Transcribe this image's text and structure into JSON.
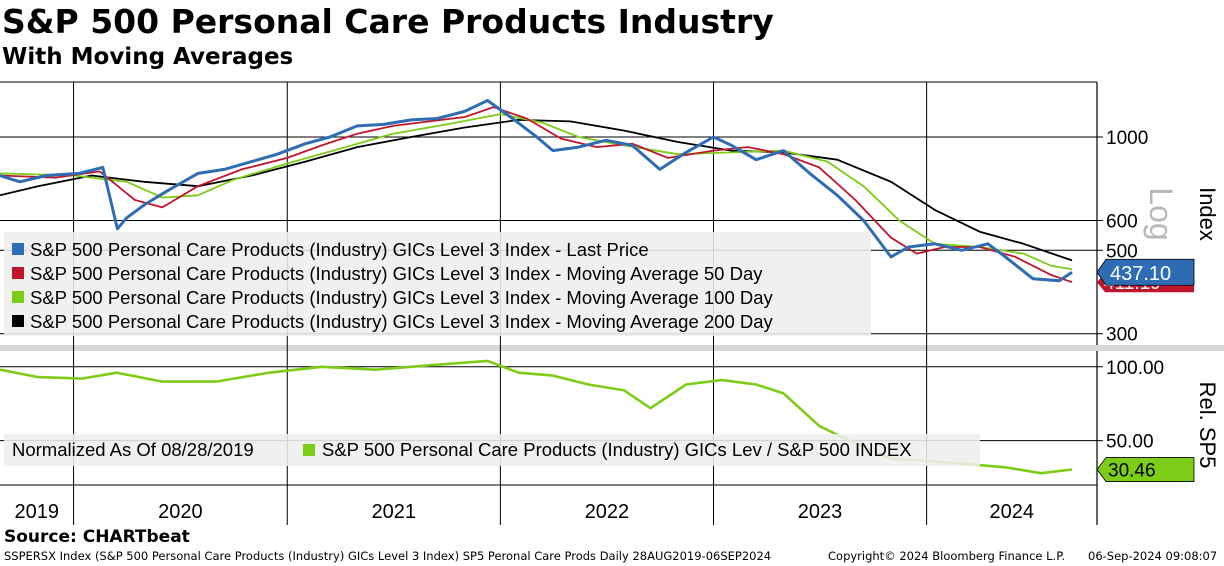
{
  "title": "S&P 500 Personal Care Products Industry",
  "subtitle": "With Moving Averages",
  "source": "Source: CHARTbeat",
  "footer": {
    "left": "SSPERSX Index (S&P 500 Personal Care Products (Industry) GICs Level 3 Index) SP5 Peronal Care Prods  Daily 28AUG2019-06SEP2024",
    "middle": "Copyright© 2024 Bloomberg Finance L.P.",
    "right": "06-Sep-2024 09:08:07"
  },
  "colors": {
    "price": "#2e6db4",
    "ma50": "#c0162c",
    "ma100": "#7ccd16",
    "ma200": "#000000",
    "rel": "#7ccd16"
  },
  "chart_data": [
    {
      "type": "line",
      "yscale": "log",
      "ylabel": "Index",
      "ylabel_secondary": "Log",
      "yticks": [
        300,
        500,
        600,
        1000
      ],
      "ylim": [
        280,
        1400
      ],
      "xlim": [
        "2019-08-28",
        "2024-09-06"
      ],
      "xticks": [
        "2019",
        "2020",
        "2021",
        "2022",
        "2023",
        "2024"
      ],
      "legend_position": "lower-left",
      "last_values": {
        "price": "437.10",
        "ma50": "411.19"
      },
      "series": [
        {
          "name": "S&P 500 Personal Care Products (Industry) GICs Level 3 Index - Last Price",
          "key": "price",
          "points": [
            [
              "2019-08-28",
              790
            ],
            [
              "2019-10-01",
              760
            ],
            [
              "2019-11-15",
              790
            ],
            [
              "2020-01-10",
              800
            ],
            [
              "2020-02-20",
              830
            ],
            [
              "2020-03-16",
              570
            ],
            [
              "2020-04-01",
              610
            ],
            [
              "2020-05-01",
              660
            ],
            [
              "2020-06-10",
              720
            ],
            [
              "2020-08-01",
              800
            ],
            [
              "2020-09-15",
              820
            ],
            [
              "2020-11-01",
              860
            ],
            [
              "2020-12-15",
              900
            ],
            [
              "2021-02-01",
              960
            ],
            [
              "2021-03-15",
              1000
            ],
            [
              "2021-05-01",
              1070
            ],
            [
              "2021-06-15",
              1080
            ],
            [
              "2021-08-01",
              1110
            ],
            [
              "2021-09-15",
              1120
            ],
            [
              "2021-11-01",
              1170
            ],
            [
              "2021-12-10",
              1250
            ],
            [
              "2022-01-15",
              1140
            ],
            [
              "2022-03-01",
              1010
            ],
            [
              "2022-04-01",
              920
            ],
            [
              "2022-05-15",
              940
            ],
            [
              "2022-07-01",
              980
            ],
            [
              "2022-08-15",
              950
            ],
            [
              "2022-10-01",
              820
            ],
            [
              "2022-11-15",
              910
            ],
            [
              "2023-01-01",
              1000
            ],
            [
              "2023-02-01",
              950
            ],
            [
              "2023-03-15",
              870
            ],
            [
              "2023-05-01",
              920
            ],
            [
              "2023-06-15",
              800
            ],
            [
              "2023-08-01",
              700
            ],
            [
              "2023-09-15",
              600
            ],
            [
              "2023-11-01",
              480
            ],
            [
              "2023-12-01",
              510
            ],
            [
              "2024-01-15",
              520
            ],
            [
              "2024-03-01",
              500
            ],
            [
              "2024-04-15",
              520
            ],
            [
              "2024-05-15",
              480
            ],
            [
              "2024-07-01",
              420
            ],
            [
              "2024-08-15",
              415
            ],
            [
              "2024-09-06",
              437.1
            ]
          ]
        },
        {
          "name": "S&P 500 Personal Care Products (Industry) GICs Level 3 Index - Moving Average 50 Day",
          "key": "ma50",
          "points": [
            [
              "2019-08-28",
              790
            ],
            [
              "2019-12-01",
              780
            ],
            [
              "2020-02-15",
              810
            ],
            [
              "2020-04-15",
              680
            ],
            [
              "2020-06-01",
              650
            ],
            [
              "2020-08-01",
              740
            ],
            [
              "2020-10-15",
              820
            ],
            [
              "2021-01-01",
              880
            ],
            [
              "2021-03-01",
              950
            ],
            [
              "2021-05-01",
              1020
            ],
            [
              "2021-07-01",
              1070
            ],
            [
              "2021-09-01",
              1100
            ],
            [
              "2021-11-01",
              1130
            ],
            [
              "2021-12-20",
              1200
            ],
            [
              "2022-02-15",
              1120
            ],
            [
              "2022-04-15",
              990
            ],
            [
              "2022-06-15",
              940
            ],
            [
              "2022-08-15",
              960
            ],
            [
              "2022-10-15",
              880
            ],
            [
              "2023-01-01",
              920
            ],
            [
              "2023-03-01",
              940
            ],
            [
              "2023-05-01",
              900
            ],
            [
              "2023-07-01",
              830
            ],
            [
              "2023-09-01",
              680
            ],
            [
              "2023-11-01",
              540
            ],
            [
              "2023-12-15",
              490
            ],
            [
              "2024-02-01",
              510
            ],
            [
              "2024-04-01",
              510
            ],
            [
              "2024-06-01",
              480
            ],
            [
              "2024-08-01",
              430
            ],
            [
              "2024-09-06",
              411.19
            ]
          ]
        },
        {
          "name": "S&P 500 Personal Care Products (Industry) GICs Level 3 Index - Moving Average 100 Day",
          "key": "ma100",
          "points": [
            [
              "2019-08-28",
              800
            ],
            [
              "2020-01-01",
              790
            ],
            [
              "2020-04-01",
              760
            ],
            [
              "2020-06-01",
              690
            ],
            [
              "2020-08-01",
              700
            ],
            [
              "2020-10-01",
              770
            ],
            [
              "2021-01-01",
              850
            ],
            [
              "2021-04-01",
              930
            ],
            [
              "2021-07-01",
              1020
            ],
            [
              "2021-10-01",
              1080
            ],
            [
              "2022-01-01",
              1150
            ],
            [
              "2022-03-15",
              1090
            ],
            [
              "2022-05-15",
              1000
            ],
            [
              "2022-08-01",
              950
            ],
            [
              "2022-11-01",
              900
            ],
            [
              "2023-02-01",
              910
            ],
            [
              "2023-05-01",
              920
            ],
            [
              "2023-07-15",
              860
            ],
            [
              "2023-09-15",
              740
            ],
            [
              "2023-11-15",
              600
            ],
            [
              "2024-01-15",
              520
            ],
            [
              "2024-04-01",
              510
            ],
            [
              "2024-06-15",
              490
            ],
            [
              "2024-08-01",
              455
            ],
            [
              "2024-09-06",
              445
            ]
          ]
        },
        {
          "name": "S&P 500 Personal Care Products (Industry) GICs Level 3 Index - Moving Average 200 Day",
          "key": "ma200",
          "points": [
            [
              "2019-08-28",
              700
            ],
            [
              "2019-11-01",
              740
            ],
            [
              "2020-02-01",
              790
            ],
            [
              "2020-05-01",
              760
            ],
            [
              "2020-08-01",
              740
            ],
            [
              "2020-11-01",
              790
            ],
            [
              "2021-02-01",
              860
            ],
            [
              "2021-05-01",
              940
            ],
            [
              "2021-08-01",
              1000
            ],
            [
              "2021-11-01",
              1060
            ],
            [
              "2022-02-01",
              1110
            ],
            [
              "2022-05-01",
              1100
            ],
            [
              "2022-08-01",
              1040
            ],
            [
              "2022-11-01",
              970
            ],
            [
              "2023-02-01",
              920
            ],
            [
              "2023-05-01",
              910
            ],
            [
              "2023-08-01",
              870
            ],
            [
              "2023-11-01",
              760
            ],
            [
              "2024-01-15",
              640
            ],
            [
              "2024-04-01",
              560
            ],
            [
              "2024-06-15",
              520
            ],
            [
              "2024-09-06",
              470
            ]
          ]
        }
      ]
    },
    {
      "type": "line",
      "ylabel": "Rel. SP5",
      "yticks": [
        50,
        100
      ],
      "ylim": [
        20,
        110
      ],
      "last_value": "30.46",
      "normalization_note": "Normalized As Of 08/28/2019",
      "series": [
        {
          "name": "S&P 500 Personal Care Products (Industry) GICs Lev / S&P 500 INDEX",
          "key": "rel",
          "points": [
            [
              "2019-08-28",
              98
            ],
            [
              "2019-11-01",
              93
            ],
            [
              "2020-01-15",
              92
            ],
            [
              "2020-03-15",
              96
            ],
            [
              "2020-06-01",
              90
            ],
            [
              "2020-09-01",
              90
            ],
            [
              "2020-12-01",
              96
            ],
            [
              "2021-03-01",
              100
            ],
            [
              "2021-06-01",
              98
            ],
            [
              "2021-09-01",
              101
            ],
            [
              "2021-12-10",
              104
            ],
            [
              "2022-02-01",
              96
            ],
            [
              "2022-04-01",
              94
            ],
            [
              "2022-06-01",
              88
            ],
            [
              "2022-08-01",
              84
            ],
            [
              "2022-09-15",
              72
            ],
            [
              "2022-11-15",
              88
            ],
            [
              "2023-01-15",
              91
            ],
            [
              "2023-03-15",
              88
            ],
            [
              "2023-05-01",
              82
            ],
            [
              "2023-07-01",
              60
            ],
            [
              "2023-09-01",
              48
            ],
            [
              "2023-11-01",
              38
            ],
            [
              "2024-01-15",
              36
            ],
            [
              "2024-03-15",
              34
            ],
            [
              "2024-05-15",
              32
            ],
            [
              "2024-07-15",
              28
            ],
            [
              "2024-09-06",
              30.46
            ]
          ]
        }
      ]
    }
  ]
}
